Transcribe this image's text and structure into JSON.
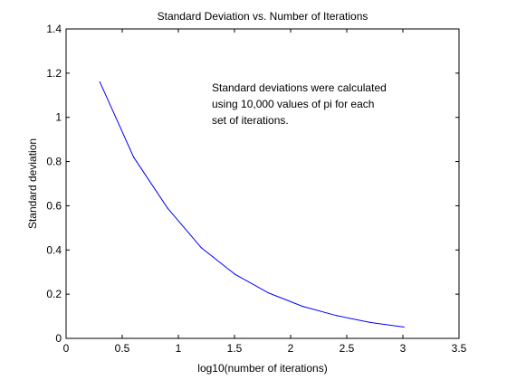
{
  "chart_data": {
    "type": "line",
    "title": "Standard Deviation vs. Number of Iterations",
    "xlabel": "log10(number of iterations)",
    "ylabel": "Standard deviation",
    "xlim": [
      0,
      3.5
    ],
    "ylim": [
      0,
      1.4
    ],
    "xticks": [
      0,
      0.5,
      1,
      1.5,
      2,
      2.5,
      3,
      3.5
    ],
    "xtick_labels": [
      "0",
      "0.5",
      "1",
      "1.5",
      "2",
      "2.5",
      "3",
      "3.5"
    ],
    "yticks": [
      0,
      0.2,
      0.4,
      0.6,
      0.8,
      1,
      1.2,
      1.4
    ],
    "ytick_labels": [
      "0",
      "0.2",
      "0.4",
      "0.6",
      "0.8",
      "1",
      "1.2",
      "1.4"
    ],
    "grid": false,
    "annotation": [
      "Standard deviations were calculated",
      "using 10,000 values of pi for each",
      "set of iterations."
    ],
    "series": [
      {
        "color": "#0000ff",
        "x": [
          0.301,
          0.602,
          0.903,
          1.204,
          1.505,
          1.806,
          2.107,
          2.408,
          2.709,
          3.01
        ],
        "y": [
          1.16,
          0.82,
          0.59,
          0.41,
          0.29,
          0.205,
          0.145,
          0.103,
          0.072,
          0.051
        ]
      }
    ]
  }
}
